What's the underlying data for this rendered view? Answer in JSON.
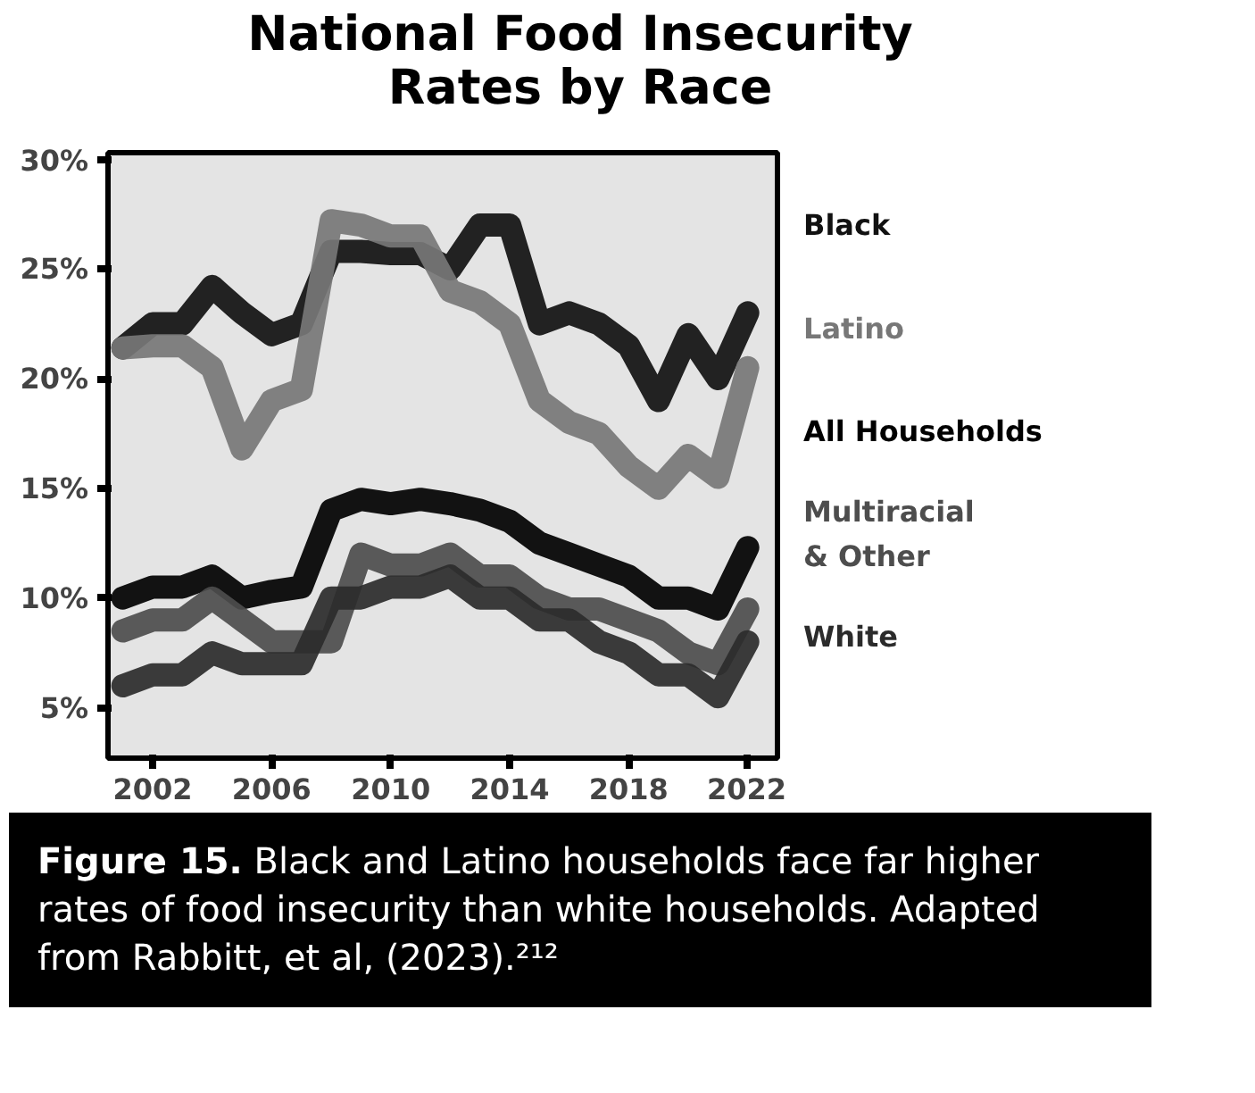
{
  "chart_data": {
    "type": "line",
    "title": "National Food Insecurity\nRates by Race",
    "x": [
      2001,
      2002,
      2003,
      2004,
      2005,
      2006,
      2007,
      2008,
      2009,
      2010,
      2011,
      2012,
      2013,
      2014,
      2015,
      2016,
      2017,
      2018,
      2019,
      2020,
      2021,
      2022
    ],
    "series": [
      {
        "name": "Black",
        "color": "#111111",
        "values": [
          21.4,
          22.5,
          22.5,
          24.2,
          23,
          22,
          22.5,
          25.8,
          25.8,
          25.7,
          25.7,
          25,
          27,
          27,
          22.5,
          23,
          22.5,
          21.5,
          19,
          22,
          20,
          23
        ]
      },
      {
        "name": "Latino",
        "color": "#777777",
        "values": [
          21.4,
          21.5,
          21.5,
          20.5,
          16.8,
          19,
          19.5,
          27.2,
          27,
          26.5,
          26.5,
          24,
          23.5,
          22.5,
          19,
          18,
          17.5,
          16,
          15,
          16.5,
          15.5,
          20.5
        ]
      },
      {
        "name": "All Households",
        "color": "#000000",
        "values": [
          10,
          10.5,
          10.5,
          11,
          10,
          10.3,
          10.5,
          14,
          14.5,
          14.3,
          14.5,
          14.3,
          14,
          13.5,
          12.5,
          12,
          11.5,
          11,
          10,
          10,
          9.5,
          12.3
        ]
      },
      {
        "name": "Multiracial\n& Other",
        "color": "#4d4d4d",
        "values": [
          8.5,
          9,
          9,
          10,
          9,
          8,
          8,
          8,
          12,
          11.5,
          11.5,
          12,
          11,
          11,
          10,
          9.5,
          9.5,
          9,
          8.5,
          7.5,
          7,
          9.5
        ]
      },
      {
        "name": "White",
        "color": "#2b2b2b",
        "values": [
          6,
          6.5,
          6.5,
          7.5,
          7,
          7,
          7,
          10,
          10,
          10.5,
          10.5,
          11,
          10,
          10,
          9,
          9,
          8,
          7.5,
          6.5,
          6.5,
          5.5,
          8
        ]
      }
    ],
    "xlim": [
      2000.5,
      2023
    ],
    "xticks": [
      2002,
      2006,
      2010,
      2014,
      2018,
      2022
    ],
    "ylim": [
      2.7,
      30.3
    ],
    "yticks": [
      {
        "value": 5,
        "label": "5%"
      },
      {
        "value": 10,
        "label": "10%"
      },
      {
        "value": 15,
        "label": "15%"
      },
      {
        "value": 20,
        "label": "20%"
      },
      {
        "value": 25,
        "label": "25%"
      },
      {
        "value": 30,
        "label": "30%"
      }
    ],
    "legend": "right",
    "grid": false,
    "line_style": "solid",
    "annotations": [
      "Figure 15. Black and Latino households face far higher rates of food insecurity than white households. Adapted from Rabbitt, et al, (2023).²¹²"
    ]
  }
}
